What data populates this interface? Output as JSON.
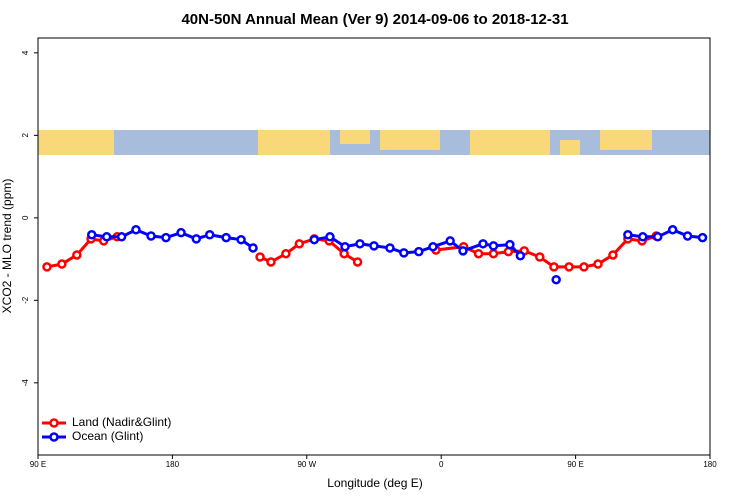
{
  "chart_data": {
    "type": "line",
    "title": "40N-50N Annual Mean (Ver 9)   2014-09-06 to 2018-12-31",
    "x_label": "Longitude (deg E)",
    "y_label": "XCO2 - MLO trend (ppm)",
    "xlim": [
      90,
      540
    ],
    "xticks": [
      {
        "value": 90,
        "label": "90 E"
      },
      {
        "value": 180,
        "label": "180"
      },
      {
        "value": 270,
        "label": "90 W"
      },
      {
        "value": 360,
        "label": "0"
      },
      {
        "value": 450,
        "label": "90 E"
      },
      {
        "value": 540,
        "label": "180"
      }
    ],
    "ylim": [
      -5.75,
      4.36
    ],
    "yticks": [
      -4,
      -2,
      0,
      2,
      4
    ],
    "legend": "bottom-left",
    "series": [
      {
        "name": "Land (Nadir&Glint)",
        "color": "#ff0000",
        "x": [
          96,
          106,
          116,
          125.5,
          134,
          143,
          null,
          238.7,
          246,
          256,
          265,
          275,
          285,
          295,
          304,
          null,
          356.5,
          375,
          385,
          395,
          405,
          415.6,
          426,
          435.5,
          445.6,
          455.6,
          465,
          475,
          485,
          494.5,
          504
        ],
        "values": [
          -1.19,
          -1.12,
          -0.9,
          -0.51,
          -0.56,
          -0.46,
          null,
          -0.95,
          -1.07,
          -0.87,
          -0.63,
          -0.51,
          -0.56,
          -0.87,
          -1.07,
          null,
          -0.78,
          -0.7,
          -0.87,
          -0.87,
          -0.82,
          -0.8,
          -0.95,
          -1.19,
          -1.19,
          -1.19,
          -1.12,
          -0.9,
          -0.51,
          -0.56,
          -0.44
        ]
      },
      {
        "name": "Ocean (Glint)",
        "color": "#0000ff",
        "x": [
          126,
          136,
          146,
          155.6,
          165.7,
          175.7,
          185.8,
          196,
          205,
          216,
          226,
          234,
          null,
          275,
          285.5,
          295.6,
          305.6,
          315,
          325.7,
          335,
          345,
          354.5,
          366,
          374.6,
          388,
          395,
          406,
          413,
          null,
          437,
          null,
          485,
          495,
          505,
          515,
          525,
          535
        ],
        "values": [
          -0.41,
          -0.46,
          -0.46,
          -0.29,
          -0.44,
          -0.48,
          -0.36,
          -0.51,
          -0.41,
          -0.48,
          -0.53,
          -0.73,
          null,
          -0.53,
          -0.46,
          -0.7,
          -0.63,
          -0.68,
          -0.73,
          -0.85,
          -0.82,
          -0.7,
          -0.56,
          -0.8,
          -0.63,
          -0.68,
          -0.65,
          -0.92,
          null,
          -1.5,
          null,
          -0.41,
          -0.46,
          -0.46,
          -0.29,
          -0.44,
          -0.48
        ]
      }
    ]
  }
}
